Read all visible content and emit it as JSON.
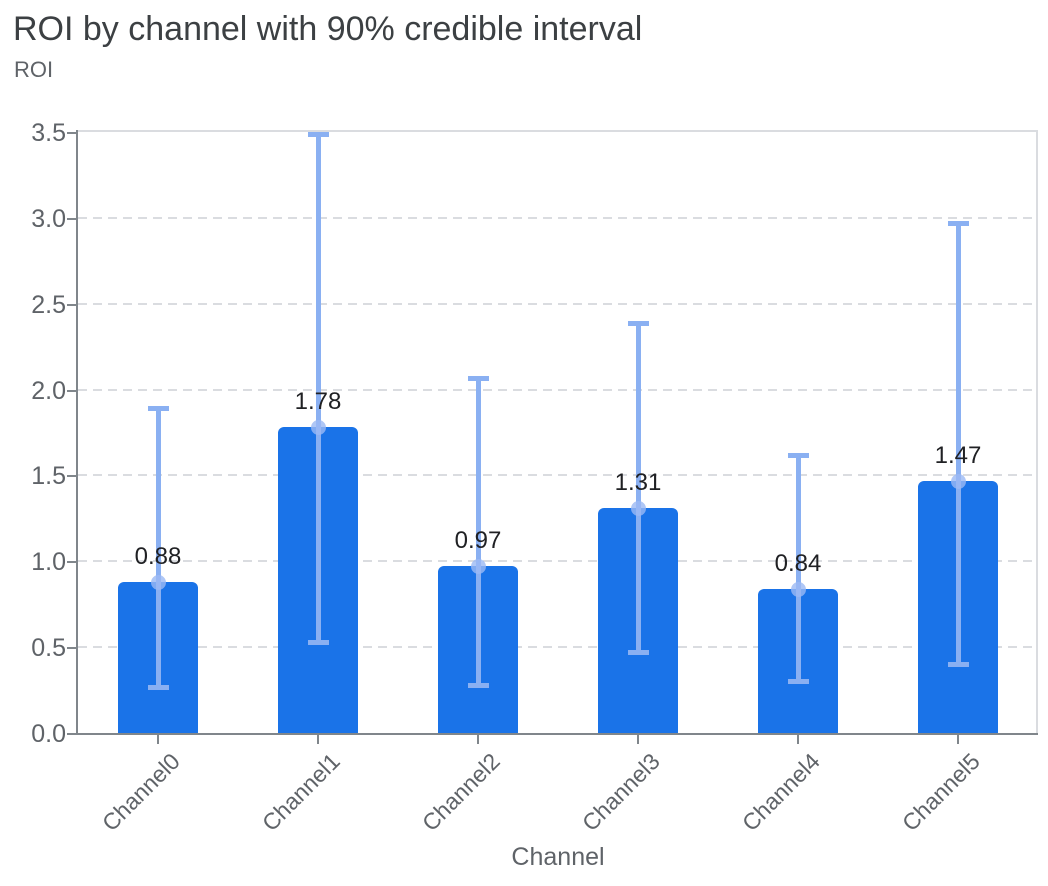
{
  "chart_data": {
    "type": "bar",
    "title": "ROI by channel with 90% credible interval",
    "ylabel": "ROI",
    "xlabel": "Channel",
    "categories": [
      "Channel0",
      "Channel1",
      "Channel2",
      "Channel3",
      "Channel4",
      "Channel5"
    ],
    "series": [
      {
        "name": "ROI",
        "values": [
          0.88,
          1.78,
          0.97,
          1.31,
          0.84,
          1.47
        ]
      }
    ],
    "value_labels": [
      "0.88",
      "1.78",
      "0.97",
      "1.31",
      "0.84",
      "1.47"
    ],
    "error_bars": {
      "label": "90% credible interval",
      "low": [
        0.27,
        0.53,
        0.28,
        0.47,
        0.3,
        0.4
      ],
      "high": [
        1.89,
        3.49,
        2.07,
        2.39,
        1.62,
        2.97
      ]
    },
    "y_ticks": [
      0.0,
      0.5,
      1.0,
      1.5,
      2.0,
      2.5,
      3.0,
      3.5
    ],
    "y_tick_labels": [
      "0.0",
      "0.5",
      "1.0",
      "1.5",
      "2.0",
      "2.5",
      "3.0",
      "3.5"
    ],
    "ylim": [
      0,
      3.5
    ],
    "grid": "horizontal-dashed",
    "legend": "none",
    "colors": {
      "bar": "#1a73e8",
      "error_bar": "#8ab0f2",
      "marker": "#9bb9f4",
      "grid": "#dadce0",
      "plot_border": "#dadce0",
      "axis": "#80868b",
      "tick_text": "#5f6368",
      "title_text": "#3c4043",
      "value_text": "#202124"
    }
  }
}
